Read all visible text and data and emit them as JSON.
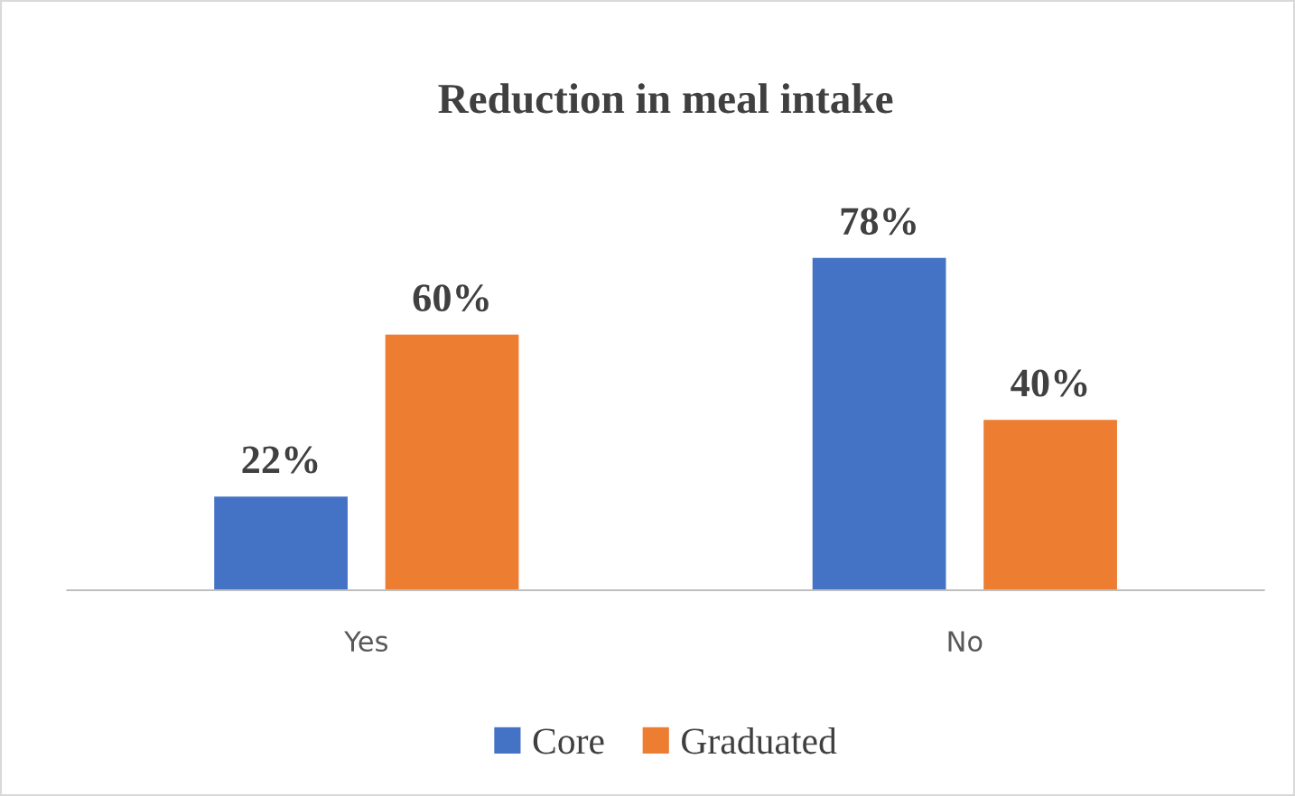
{
  "chart_data": {
    "type": "bar",
    "title": "Reduction in meal intake",
    "categories": [
      "Yes",
      "No"
    ],
    "series": [
      {
        "name": "Core",
        "color": "#4472c4",
        "values": [
          22,
          78
        ],
        "value_labels": [
          "22%",
          "78%"
        ]
      },
      {
        "name": "Graduated",
        "color": "#ed7d31",
        "values": [
          60,
          40
        ],
        "value_labels": [
          "60%",
          "40%"
        ]
      }
    ],
    "tick_labels": "x",
    "grid": false,
    "legend": "bottom"
  }
}
